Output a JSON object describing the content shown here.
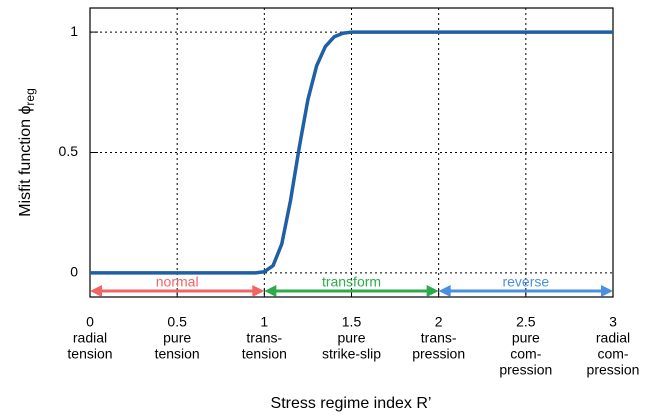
{
  "chart_data": {
    "type": "line",
    "xlabel": "Stress regime index R’",
    "ylabel": "Misfit function ϕ",
    "ylabel_subscript": "reg",
    "x": [
      0,
      0.5,
      0.95,
      1.0,
      1.05,
      1.1,
      1.15,
      1.2,
      1.25,
      1.3,
      1.35,
      1.4,
      1.45,
      1.5,
      1.6,
      2,
      2.5,
      3
    ],
    "series": [
      {
        "color": "#1f5fa6",
        "values": [
          0,
          0,
          0,
          0.005,
          0.03,
          0.12,
          0.3,
          0.52,
          0.72,
          0.86,
          0.94,
          0.98,
          0.995,
          1,
          1,
          1,
          1,
          1
        ]
      }
    ],
    "xlim": [
      0,
      3
    ],
    "ylim": [
      -0.1,
      1.1
    ],
    "xticks": [
      0,
      0.5,
      1,
      1.5,
      2,
      2.5,
      3
    ],
    "yticks": [
      0,
      0.5,
      1
    ],
    "xtick_descriptions": [
      [
        "radial",
        "tension"
      ],
      [
        "pure",
        "tension"
      ],
      [
        "trans-",
        "tension"
      ],
      [
        "pure",
        "strike-slip"
      ],
      [
        "trans-",
        "pression"
      ],
      [
        "pure",
        "com-",
        "pression"
      ],
      [
        "radial",
        "com-",
        "pression"
      ]
    ],
    "grid": true,
    "regimes": [
      {
        "label": "normal",
        "color": "#f26464",
        "range": [
          0,
          1
        ]
      },
      {
        "label": "transform",
        "color": "#2eaa4a",
        "range": [
          1,
          2
        ]
      },
      {
        "label": "reverse",
        "color": "#4a90e2",
        "range": [
          2,
          3
        ]
      }
    ]
  }
}
